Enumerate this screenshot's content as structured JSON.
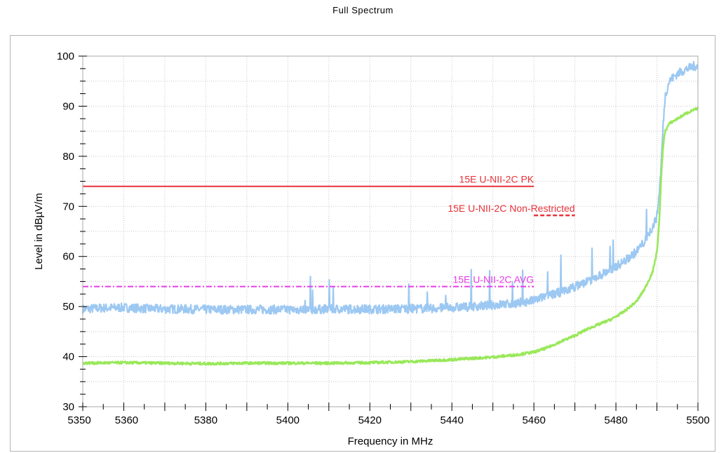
{
  "chart_data": {
    "type": "line",
    "title": "Full Spectrum",
    "xlabel": "Frequency in MHz",
    "ylabel": "Level in dBµV/m",
    "xlim": [
      5350,
      5500
    ],
    "ylim": [
      30,
      100
    ],
    "xticks": [
      5350,
      5360,
      5380,
      5400,
      5420,
      5440,
      5460,
      5480,
      5500
    ],
    "yticks": [
      30,
      40,
      50,
      60,
      70,
      80,
      90,
      100
    ],
    "grid": true,
    "limit_lines": [
      {
        "label": "15E U-NII-2C PK",
        "x": [
          5350,
          5460
        ],
        "y": 74,
        "color": "#e8323a",
        "style": "solid"
      },
      {
        "label": "15E U-NII-2C Non-Restricted",
        "x": [
          5460,
          5470
        ],
        "y": 68.2,
        "color": "#e8323a",
        "style": "dashed"
      },
      {
        "label": "15E U-NII-2C AVG",
        "x": [
          5350,
          5460
        ],
        "y": 54,
        "color": "#e83ce8",
        "style": "dashdot"
      }
    ],
    "series": [
      {
        "color": "#9cc8f2",
        "x": [
          5350,
          5355,
          5360,
          5365,
          5370,
          5375,
          5380,
          5385,
          5390,
          5395,
          5400,
          5405,
          5410,
          5415,
          5420,
          5425,
          5430,
          5435,
          5440,
          5445,
          5450,
          5455,
          5460,
          5462,
          5465,
          5468,
          5470,
          5473,
          5476,
          5479,
          5482,
          5485,
          5487,
          5488,
          5489,
          5490,
          5490.5,
          5491,
          5491.5,
          5492,
          5493,
          5495,
          5497,
          5499,
          5500
        ],
        "y": [
          49.5,
          49.7,
          49.8,
          49.6,
          49.5,
          49.5,
          49.4,
          49.4,
          49.4,
          49.4,
          49.4,
          49.4,
          49.5,
          49.5,
          49.5,
          49.5,
          49.6,
          49.6,
          49.8,
          50.0,
          50.3,
          50.6,
          51.2,
          51.8,
          52.5,
          53.3,
          54.0,
          55.0,
          56.2,
          57.5,
          59.0,
          61.0,
          63.0,
          64.5,
          66.0,
          68.0,
          72.0,
          78.0,
          86.0,
          92.0,
          95.0,
          96.5,
          97.3,
          98.0,
          98.0
        ]
      },
      {
        "color": "#99e85a",
        "x": [
          5350,
          5360,
          5370,
          5380,
          5390,
          5400,
          5410,
          5420,
          5430,
          5440,
          5450,
          5455,
          5460,
          5463,
          5466,
          5470,
          5473,
          5476,
          5479,
          5482,
          5485,
          5487,
          5489,
          5490,
          5490.5,
          5491,
          5491.5,
          5492,
          5493,
          5495,
          5497,
          5499,
          5500
        ],
        "y": [
          38.7,
          38.8,
          38.7,
          38.6,
          38.7,
          38.7,
          38.7,
          38.8,
          39.0,
          39.4,
          39.9,
          40.3,
          40.9,
          41.7,
          42.8,
          44.2,
          45.5,
          46.5,
          47.5,
          49.0,
          51.0,
          53.5,
          57.0,
          61.0,
          66.0,
          75.0,
          82.0,
          85.0,
          86.5,
          87.5,
          88.5,
          89.3,
          89.5
        ]
      }
    ]
  }
}
